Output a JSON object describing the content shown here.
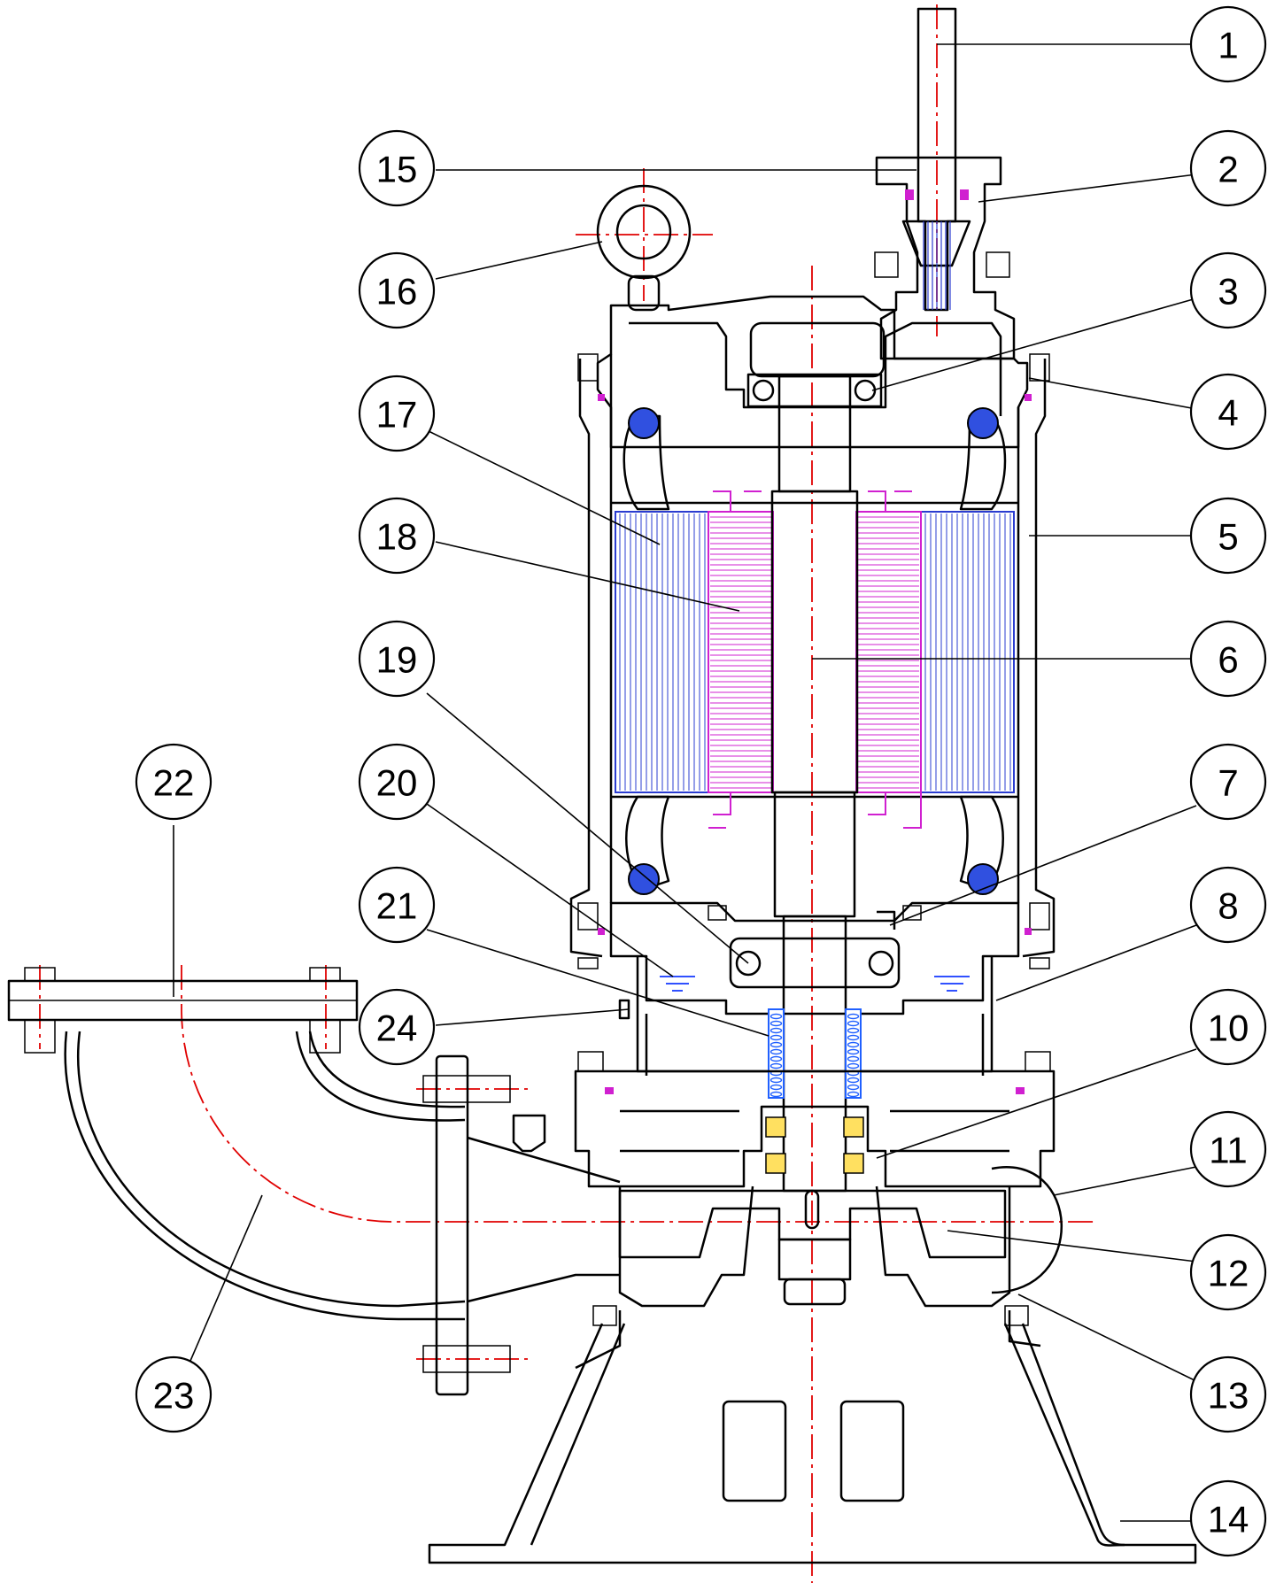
{
  "colors": {
    "outline": "#000000",
    "centerline": "#e00000",
    "stator": "#2a3cd0",
    "rotor": "#d020d0",
    "seal": "#2060ff",
    "seal_face": "#e8c000",
    "water_level": "#3050ff"
  },
  "callouts": [
    {
      "label": "1"
    },
    {
      "label": "2"
    },
    {
      "label": "3"
    },
    {
      "label": "4"
    },
    {
      "label": "5"
    },
    {
      "label": "6"
    },
    {
      "label": "7"
    },
    {
      "label": "8"
    },
    {
      "label": "10"
    },
    {
      "label": "11"
    },
    {
      "label": "12"
    },
    {
      "label": "13"
    },
    {
      "label": "14"
    },
    {
      "label": "15"
    },
    {
      "label": "16"
    },
    {
      "label": "17"
    },
    {
      "label": "18"
    },
    {
      "label": "19"
    },
    {
      "label": "20"
    },
    {
      "label": "21"
    },
    {
      "label": "22"
    },
    {
      "label": "23"
    },
    {
      "label": "24"
    }
  ]
}
